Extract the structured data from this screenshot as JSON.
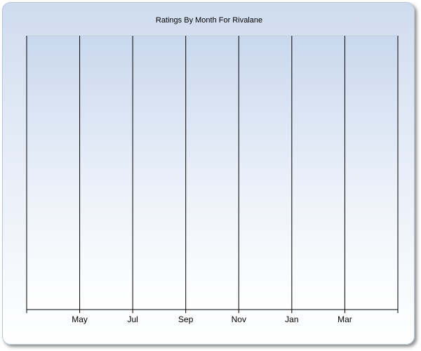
{
  "chart_data": {
    "type": "line",
    "title": "Ratings By Month For Rivalane",
    "categories": [
      null,
      "May",
      "Jul",
      "Sep",
      "Nov",
      "Jan",
      "Mar",
      null
    ],
    "grid": true
  }
}
